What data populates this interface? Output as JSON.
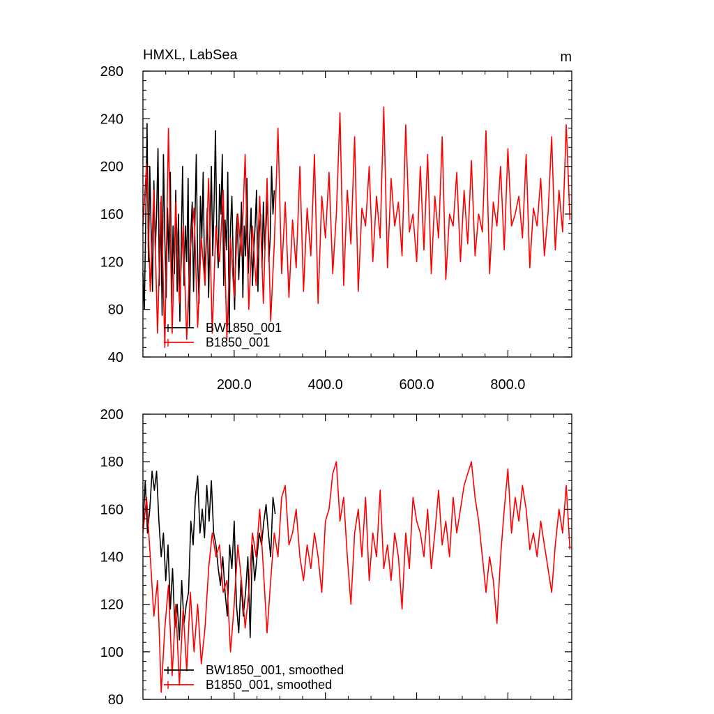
{
  "chart_data": [
    {
      "type": "line",
      "title": "HMXL, LabSea",
      "units": "m",
      "xlabel": "",
      "ylabel": "",
      "xlim": [
        0,
        940
      ],
      "ylim": [
        40,
        280
      ],
      "xticks": [
        200,
        400,
        600,
        800
      ],
      "xtick_labels": [
        "200.0",
        "400.0",
        "600.0",
        "800.0"
      ],
      "yticks": [
        40,
        80,
        120,
        160,
        200,
        240,
        280
      ],
      "ytick_labels": [
        "40",
        "80",
        "120",
        "160",
        "200",
        "240",
        "280"
      ],
      "grid": false,
      "legend_position": "bottom-left",
      "series": [
        {
          "name": "BW1850_001",
          "color": "#000000",
          "x": [
            0,
            3,
            6,
            9,
            12,
            15,
            18,
            21,
            24,
            27,
            30,
            33,
            36,
            39,
            42,
            45,
            48,
            51,
            54,
            57,
            60,
            63,
            66,
            69,
            72,
            75,
            78,
            81,
            84,
            87,
            90,
            93,
            96,
            99,
            102,
            105,
            108,
            111,
            114,
            117,
            120,
            123,
            126,
            129,
            132,
            135,
            138,
            141,
            144,
            147,
            150,
            153,
            156,
            159,
            162,
            165,
            168,
            171,
            174,
            177,
            180,
            183,
            186,
            189,
            192,
            195,
            198,
            201,
            204,
            207,
            210,
            213,
            216,
            219,
            222,
            225,
            228,
            231,
            234,
            237,
            240,
            243,
            246,
            249,
            252,
            255,
            258,
            261,
            264,
            267,
            270,
            273,
            276,
            279,
            282,
            285,
            288
          ],
          "values": [
            110,
            80,
            150,
            236,
            120,
            200,
            145,
            95,
            188,
            130,
            160,
            215,
            100,
            170,
            75,
            210,
            140,
            90,
            165,
            120,
            195,
            85,
            150,
            110,
            180,
            95,
            160,
            70,
            140,
            200,
            100,
            150,
            120,
            190,
            65,
            145,
            170,
            95,
            155,
            210,
            120,
            85,
            175,
            140,
            195,
            110,
            130,
            165,
            90,
            150,
            200,
            125,
            170,
            230,
            140,
            115,
            185,
            160,
            210,
            100,
            155,
            130,
            195,
            60,
            150,
            175,
            120,
            80,
            145,
            160,
            105,
            135,
            170,
            90,
            150,
            125,
            190,
            110,
            140,
            165,
            100,
            130,
            150,
            180,
            95,
            145,
            160,
            115,
            170,
            130,
            150,
            175,
            120,
            140,
            200,
            160,
            180
          ]
        },
        {
          "name": "B1850_001",
          "color": "#ff0000",
          "x": [
            0,
            8,
            16,
            24,
            32,
            40,
            48,
            56,
            64,
            72,
            80,
            88,
            96,
            104,
            112,
            120,
            128,
            136,
            144,
            152,
            160,
            168,
            176,
            184,
            192,
            200,
            208,
            216,
            224,
            232,
            240,
            248,
            256,
            264,
            272,
            280,
            288,
            296,
            304,
            312,
            320,
            328,
            336,
            344,
            352,
            360,
            368,
            376,
            384,
            392,
            400,
            408,
            416,
            424,
            432,
            440,
            448,
            456,
            464,
            472,
            480,
            488,
            496,
            504,
            512,
            520,
            528,
            536,
            544,
            552,
            560,
            568,
            576,
            584,
            592,
            600,
            608,
            616,
            624,
            632,
            640,
            648,
            656,
            664,
            672,
            680,
            688,
            696,
            704,
            712,
            720,
            728,
            736,
            744,
            752,
            760,
            768,
            776,
            784,
            792,
            800,
            808,
            816,
            824,
            832,
            840,
            848,
            856,
            864,
            872,
            880,
            888,
            896,
            904,
            912,
            920,
            928,
            936
          ],
          "values": [
            150,
            202,
            95,
            180,
            60,
            175,
            48,
            232,
            60,
            170,
            85,
            150,
            55,
            130,
            165,
            65,
            140,
            100,
            190,
            60,
            150,
            120,
            180,
            55,
            140,
            90,
            160,
            125,
            210,
            80,
            150,
            100,
            175,
            85,
            190,
            70,
            135,
            232,
            110,
            170,
            90,
            155,
            115,
            200,
            95,
            165,
            125,
            210,
            85,
            175,
            140,
            195,
            110,
            160,
            245,
            100,
            180,
            135,
            225,
            95,
            165,
            150,
            200,
            120,
            175,
            140,
            250,
            115,
            190,
            150,
            170,
            125,
            235,
            145,
            160,
            120,
            200,
            130,
            210,
            110,
            175,
            140,
            225,
            105,
            160,
            150,
            195,
            120,
            180,
            135,
            205,
            125,
            160,
            145,
            230,
            110,
            170,
            150,
            200,
            130,
            215,
            150,
            160,
            175,
            140,
            210,
            115,
            165,
            150,
            190,
            125,
            160,
            225,
            130,
            180,
            145,
            235,
            155
          ]
        }
      ]
    },
    {
      "type": "line",
      "title": "",
      "xlabel": "",
      "ylabel": "",
      "xlim": [
        0,
        940
      ],
      "ylim": [
        80,
        200
      ],
      "xticks": [
        200,
        400,
        600,
        800
      ],
      "yticks": [
        80,
        100,
        120,
        140,
        160,
        180,
        200
      ],
      "ytick_labels": [
        "80",
        "100",
        "120",
        "140",
        "160",
        "180",
        "200"
      ],
      "grid": false,
      "legend_position": "bottom-left",
      "series": [
        {
          "name": "BW1850_001, smoothed",
          "color": "#000000",
          "x": [
            0,
            5,
            10,
            15,
            20,
            25,
            30,
            35,
            40,
            45,
            50,
            55,
            60,
            65,
            70,
            75,
            80,
            85,
            90,
            95,
            100,
            105,
            110,
            115,
            120,
            125,
            130,
            135,
            140,
            145,
            150,
            155,
            160,
            165,
            170,
            175,
            180,
            185,
            190,
            195,
            200,
            205,
            210,
            215,
            220,
            225,
            230,
            235,
            240,
            245,
            250,
            255,
            260,
            265,
            270,
            275,
            280,
            285,
            290
          ],
          "values": [
            152,
            172,
            150,
            160,
            176,
            168,
            176,
            155,
            140,
            150,
            130,
            145,
            118,
            135,
            110,
            120,
            105,
            130,
            112,
            120,
            125,
            155,
            145,
            165,
            174,
            150,
            160,
            148,
            170,
            155,
            172,
            150,
            145,
            135,
            128,
            140,
            125,
            115,
            145,
            135,
            155,
            120,
            108,
            130,
            115,
            125,
            140,
            106,
            145,
            130,
            140,
            150,
            145,
            155,
            162,
            150,
            140,
            165,
            158
          ]
        },
        {
          "name": "B1850_001, smoothed",
          "color": "#ff0000",
          "x": [
            0,
            8,
            16,
            24,
            32,
            40,
            48,
            56,
            64,
            72,
            80,
            88,
            96,
            104,
            112,
            120,
            128,
            136,
            144,
            152,
            160,
            168,
            176,
            184,
            192,
            200,
            208,
            216,
            224,
            232,
            240,
            248,
            256,
            264,
            272,
            280,
            288,
            296,
            304,
            312,
            320,
            328,
            336,
            344,
            352,
            360,
            368,
            376,
            384,
            392,
            400,
            408,
            416,
            424,
            432,
            440,
            448,
            456,
            464,
            472,
            480,
            488,
            496,
            504,
            512,
            520,
            528,
            536,
            544,
            552,
            560,
            568,
            576,
            584,
            592,
            600,
            608,
            616,
            624,
            632,
            640,
            648,
            656,
            664,
            672,
            680,
            688,
            696,
            704,
            712,
            720,
            728,
            736,
            744,
            752,
            760,
            768,
            776,
            784,
            792,
            800,
            808,
            816,
            824,
            832,
            840,
            848,
            856,
            864,
            872,
            880,
            888,
            896,
            904,
            912,
            920,
            928,
            936
          ],
          "values": [
            150,
            165,
            140,
            115,
            130,
            83,
            110,
            128,
            90,
            120,
            86,
            118,
            92,
            125,
            100,
            120,
            95,
            110,
            135,
            150,
            140,
            145,
            125,
            130,
            100,
            120,
            145,
            130,
            110,
            125,
            150,
            140,
            160,
            135,
            108,
            130,
            150,
            140,
            165,
            170,
            145,
            150,
            160,
            140,
            130,
            145,
            135,
            150,
            140,
            125,
            155,
            160,
            175,
            180,
            155,
            165,
            140,
            120,
            150,
            160,
            140,
            165,
            130,
            150,
            140,
            168,
            135,
            145,
            130,
            150,
            140,
            118,
            150,
            135,
            165,
            155,
            150,
            140,
            160,
            135,
            150,
            168,
            145,
            155,
            140,
            165,
            150,
            160,
            170,
            175,
            180,
            165,
            155,
            140,
            125,
            140,
            130,
            112,
            140,
            160,
            177,
            150,
            165,
            155,
            170,
            160,
            143,
            150,
            140,
            155,
            145,
            135,
            125,
            145,
            160,
            150,
            170,
            143
          ]
        }
      ]
    }
  ]
}
